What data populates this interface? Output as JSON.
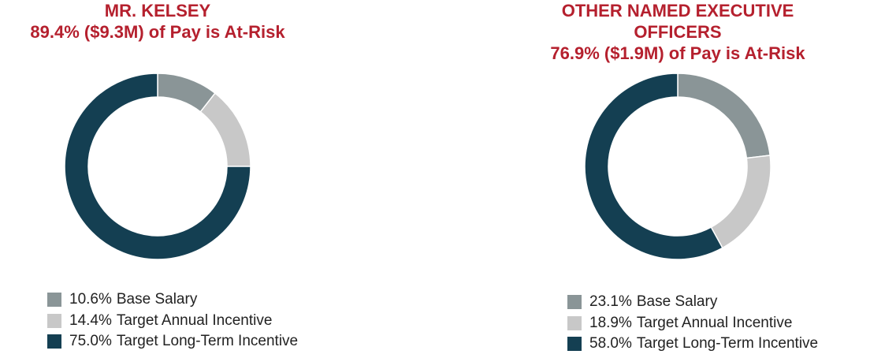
{
  "chart_data": [
    {
      "type": "donut",
      "title": "MR. KELSEY",
      "subtitle": "89.4% ($9.3M) of Pay is At-Risk",
      "categories": [
        "Base Salary",
        "Target Annual Incentive",
        "Target Long-Term Incentive"
      ],
      "values": [
        10.6,
        14.4,
        75.0
      ],
      "value_labels": [
        "10.6%",
        "14.4%",
        "75.0%"
      ],
      "colors": [
        "#8a9597",
        "#c8c8c8",
        "#143f52"
      ]
    },
    {
      "type": "donut",
      "title": "OTHER NAMED EXECUTIVE OFFICERS",
      "subtitle": "76.9% ($1.9M) of Pay is At-Risk",
      "categories": [
        "Base Salary",
        "Target Annual Incentive",
        "Target Long-Term Incentive"
      ],
      "values": [
        23.1,
        18.9,
        58.0
      ],
      "value_labels": [
        "23.1%",
        "18.9%",
        "58.0%"
      ],
      "colors": [
        "#8a9597",
        "#c8c8c8",
        "#143f52"
      ]
    }
  ]
}
